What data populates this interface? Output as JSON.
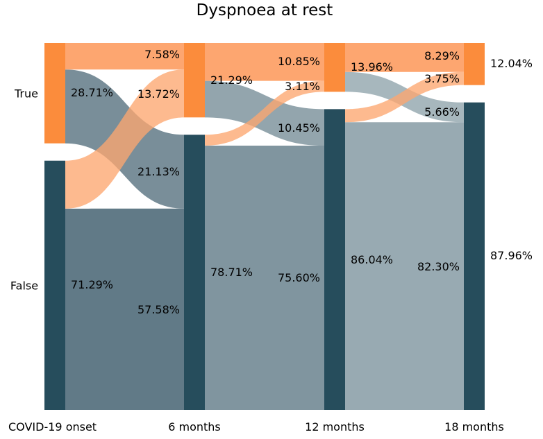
{
  "chart_data": {
    "type": "sankey",
    "title": "Dyspnoea at rest",
    "time_points": [
      "COVID-19 onset",
      "6 months",
      "12 months",
      "18 months"
    ],
    "states": [
      "True",
      "False"
    ],
    "state_labels": [
      "True",
      "False"
    ],
    "node_percentages": {
      "COVID-19 onset": {
        "True": 28.71,
        "False": 71.29
      },
      "6 months": {
        "True": 21.29,
        "False": 78.71
      },
      "12 months": {
        "True": 13.96,
        "False": 86.04
      },
      "18 months": {
        "True": 12.04,
        "False": 87.96
      }
    },
    "node_labels": {
      "COVID-19 onset": {
        "True": "28.71%",
        "False": "71.29%"
      },
      "6 months": {
        "True": "21.29%",
        "False": "78.71%"
      },
      "12 months": {
        "True": "13.96%",
        "False": "86.04%"
      },
      "18 months": {
        "True": "12.04%",
        "False": "87.96%"
      }
    },
    "transitions": [
      {
        "stage": 0,
        "from": "True",
        "to": "True",
        "value": 7.58,
        "label": "7.58%"
      },
      {
        "stage": 0,
        "from": "True",
        "to": "False",
        "value": 21.13,
        "label": "21.13%"
      },
      {
        "stage": 0,
        "from": "False",
        "to": "True",
        "value": 13.72,
        "label": "13.72%"
      },
      {
        "stage": 0,
        "from": "False",
        "to": "False",
        "value": 57.58,
        "label": "57.58%"
      },
      {
        "stage": 1,
        "from": "True",
        "to": "True",
        "value": 10.85,
        "label": "10.85%"
      },
      {
        "stage": 1,
        "from": "True",
        "to": "False",
        "value": 10.45,
        "label": "10.45%"
      },
      {
        "stage": 1,
        "from": "False",
        "to": "True",
        "value": 3.11,
        "label": "3.11%"
      },
      {
        "stage": 1,
        "from": "False",
        "to": "False",
        "value": 75.6,
        "label": "75.60%"
      },
      {
        "stage": 2,
        "from": "True",
        "to": "True",
        "value": 8.29,
        "label": "8.29%"
      },
      {
        "stage": 2,
        "from": "True",
        "to": "False",
        "value": 5.66,
        "label": "5.66%"
      },
      {
        "stage": 2,
        "from": "False",
        "to": "True",
        "value": 3.75,
        "label": "3.75%"
      },
      {
        "stage": 2,
        "from": "False",
        "to": "False",
        "value": 82.3,
        "label": "82.30%"
      }
    ],
    "colors": {
      "true_node": "#fb8c3c",
      "false_node": "#264d5c",
      "true_flow": "#fda670",
      "false_flow_stages": [
        "#617a87",
        "#80959f",
        "#98aab2"
      ]
    }
  }
}
